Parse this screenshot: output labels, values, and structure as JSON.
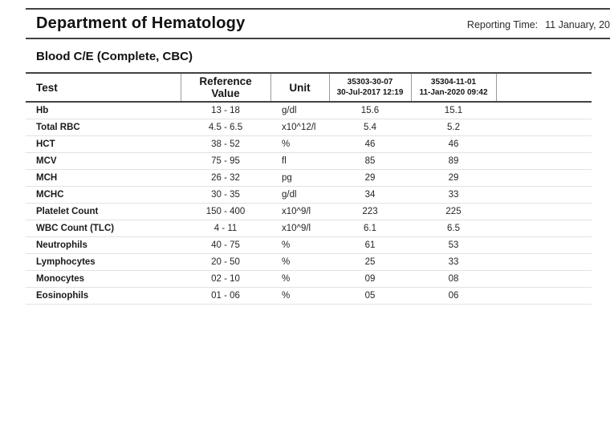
{
  "header": {
    "title": "Department of Hematology",
    "reporting_time_label": "Reporting Time:",
    "reporting_time_value": "11 January, 20"
  },
  "section": {
    "title": "Blood C/E (Complete, CBC)"
  },
  "table": {
    "columns": [
      {
        "label": "Test"
      },
      {
        "label": "Reference Value"
      },
      {
        "label": "Unit"
      },
      {
        "id": "35303-30-07",
        "datetime": "30-Jul-2017 12:19"
      },
      {
        "id": "35304-11-01",
        "datetime": "11-Jan-2020 09:42"
      }
    ],
    "rows": [
      {
        "test": "Hb",
        "reference": "13  -  18",
        "unit": "g/dl",
        "result1": "15.6",
        "result2": "15.1"
      },
      {
        "test": "Total RBC",
        "reference": "4.5  -  6.5",
        "unit": "x10^12/l",
        "result1": "5.4",
        "result2": "5.2"
      },
      {
        "test": "HCT",
        "reference": "38  -  52",
        "unit": "%",
        "result1": "46",
        "result2": "46"
      },
      {
        "test": "MCV",
        "reference": "75  -  95",
        "unit": "fl",
        "result1": "85",
        "result2": "89"
      },
      {
        "test": "MCH",
        "reference": "26  -  32",
        "unit": "pg",
        "result1": "29",
        "result2": "29"
      },
      {
        "test": "MCHC",
        "reference": "30  -  35",
        "unit": "g/dl",
        "result1": "34",
        "result2": "33"
      },
      {
        "test": "Platelet Count",
        "reference": "150  -  400",
        "unit": "x10^9/l",
        "result1": "223",
        "result2": "225"
      },
      {
        "test": "WBC Count (TLC)",
        "reference": "4  -  11",
        "unit": "x10^9/l",
        "result1": "6.1",
        "result2": "6.5"
      },
      {
        "test": "Neutrophils",
        "reference": "40  -  75",
        "unit": "%",
        "result1": "61",
        "result2": "53"
      },
      {
        "test": "Lymphocytes",
        "reference": "20  -  50",
        "unit": "%",
        "result1": "25",
        "result2": "33"
      },
      {
        "test": "Monocytes",
        "reference": "02  -  10",
        "unit": "%",
        "result1": "09",
        "result2": "08"
      },
      {
        "test": "Eosinophils",
        "reference": "01  -  06",
        "unit": "%",
        "result1": "05",
        "result2": "06"
      }
    ]
  },
  "colors": {
    "dark_rule": "#424242",
    "header_divider": "#9a9a9a",
    "row_divider": "#e2e2e2",
    "text": "#1f1f1f"
  }
}
